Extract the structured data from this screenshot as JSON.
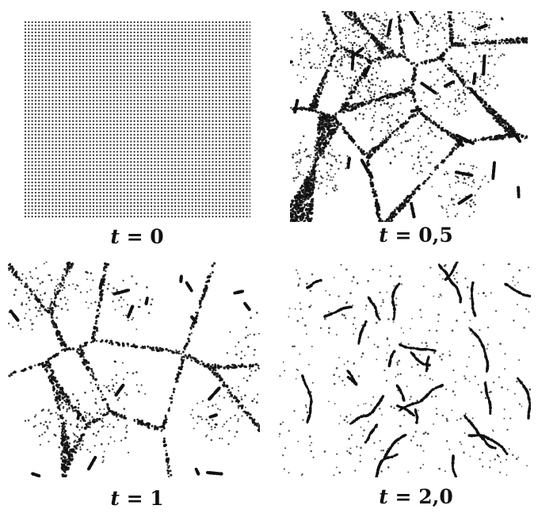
{
  "figure": {
    "panels": [
      {
        "id": "t0",
        "variable": "t",
        "equals": "=",
        "value": "0",
        "pattern": "uniform-grid"
      },
      {
        "id": "t05",
        "variable": "t",
        "equals": "=",
        "value": "0,5",
        "pattern": "cellular-dense"
      },
      {
        "id": "t1",
        "variable": "t",
        "equals": "=",
        "value": "1",
        "pattern": "cellular-medium"
      },
      {
        "id": "t20",
        "variable": "t",
        "equals": "=",
        "value": "2,0",
        "pattern": "filaments"
      }
    ],
    "colors": {
      "ink": "#111111",
      "background": "#ffffff"
    }
  }
}
